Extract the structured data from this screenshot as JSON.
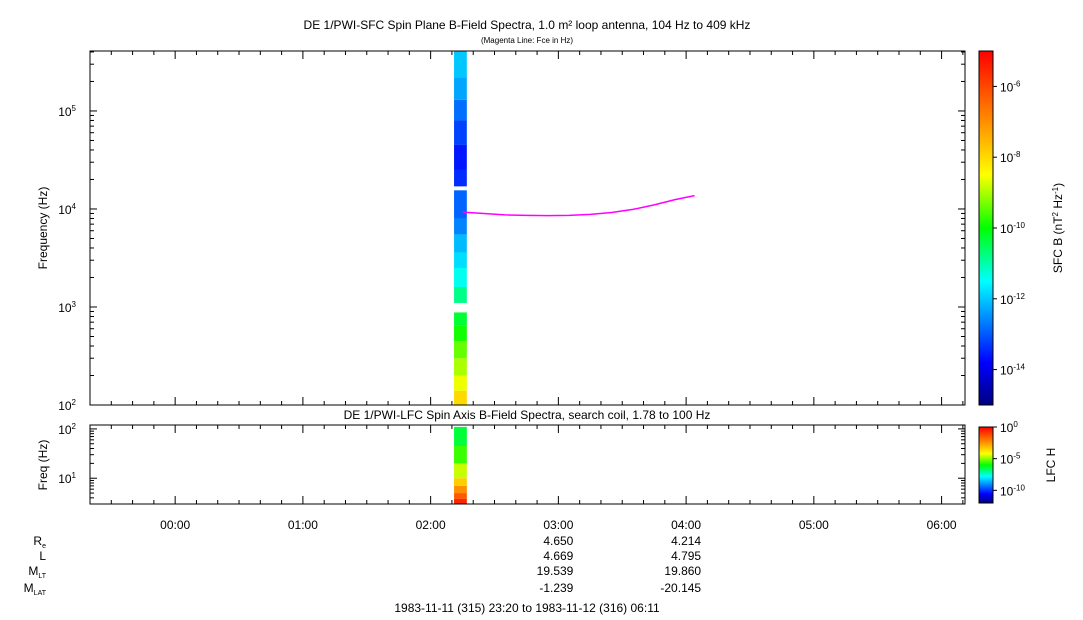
{
  "chart_data": [
    {
      "type": "heatmap",
      "title": "DE 1/PWI-SFC  Spin Plane B-Field Spectra, 1.0 m² loop antenna, 104 Hz to 409 kHz",
      "subtitle": "(Magenta Line: Fce in Hz)",
      "ylabel": "Frequency (Hz)",
      "yscale": "log",
      "ylim": [
        100,
        409000
      ],
      "x_time_range": [
        "23:20",
        "06:11"
      ],
      "y_ticks": [
        {
          "v": 100,
          "exp": "2"
        },
        {
          "v": 1000,
          "exp": "3"
        },
        {
          "v": 10000,
          "exp": "4"
        },
        {
          "v": 100000,
          "exp": "5"
        }
      ],
      "colorbar": {
        "label": "SFC B (nT",
        "label_sup1": "2",
        "label_mid": " Hz",
        "label_sup2": "-1",
        "label_end": ")",
        "scale": "log",
        "range": [
          1e-15,
          1e-05
        ],
        "ticks": [
          {
            "v": 1e-06,
            "exp": "-6"
          },
          {
            "v": 1e-08,
            "exp": "-8"
          },
          {
            "v": 1e-10,
            "exp": "-10"
          },
          {
            "v": 1e-12,
            "exp": "-12"
          },
          {
            "v": 1e-14,
            "exp": "-14"
          }
        ]
      },
      "data_column": {
        "time_start": "02:11",
        "time_end": "02:17",
        "cells": [
          {
            "f_lo": 100,
            "f_hi": 140,
            "v": -8.0
          },
          {
            "f_lo": 140,
            "f_hi": 200,
            "v": -8.6
          },
          {
            "f_lo": 200,
            "f_hi": 300,
            "v": -9.0
          },
          {
            "f_lo": 300,
            "f_hi": 450,
            "v": -9.4
          },
          {
            "f_lo": 450,
            "f_hi": 650,
            "v": -9.9
          },
          {
            "f_lo": 650,
            "f_hi": 880,
            "v": -10.3
          },
          {
            "f_lo": 1100,
            "f_hi": 1600,
            "v": -10.8
          },
          {
            "f_lo": 1600,
            "f_hi": 2500,
            "v": -11.4
          },
          {
            "f_lo": 2500,
            "f_hi": 3600,
            "v": -11.8
          },
          {
            "f_lo": 3600,
            "f_hi": 5500,
            "v": -12.1
          },
          {
            "f_lo": 5500,
            "f_hi": 8000,
            "v": -12.6
          },
          {
            "f_lo": 8000,
            "f_hi": 15500,
            "v": -12.9
          },
          {
            "f_lo": 17000,
            "f_hi": 25000,
            "v": -13.4
          },
          {
            "f_lo": 25000,
            "f_hi": 45000,
            "v": -13.6
          },
          {
            "f_lo": 45000,
            "f_hi": 80000,
            "v": -13.2
          },
          {
            "f_lo": 80000,
            "f_hi": 130000,
            "v": -12.8
          },
          {
            "f_lo": 130000,
            "f_hi": 220000,
            "v": -12.3
          },
          {
            "f_lo": 220000,
            "f_hi": 409000,
            "v": -12.0
          }
        ]
      },
      "series": [
        {
          "name": "Fce",
          "color": "#ff00ff",
          "points": [
            [
              "02:15",
              9300
            ],
            [
              "02:25",
              9000
            ],
            [
              "02:35",
              8700
            ],
            [
              "02:45",
              8600
            ],
            [
              "02:55",
              8550
            ],
            [
              "03:05",
              8600
            ],
            [
              "03:15",
              8800
            ],
            [
              "03:25",
              9200
            ],
            [
              "03:35",
              9900
            ],
            [
              "03:45",
              11000
            ],
            [
              "03:55",
              12500
            ],
            [
              "04:04",
              13700
            ]
          ]
        }
      ]
    },
    {
      "type": "heatmap",
      "title": "DE 1/PWI-LFC  Spin Axis B-Field Spectra, search coil, 1.78 to 100 Hz",
      "ylabel": "Freq (Hz)",
      "yscale": "log",
      "ylim": [
        3,
        120
      ],
      "y_ticks": [
        {
          "v": 10,
          "exp": "1"
        },
        {
          "v": 100,
          "exp": "2"
        }
      ],
      "colorbar": {
        "label": "LFC H",
        "scale": "log",
        "range": [
          1e-12,
          1
        ],
        "ticks": [
          {
            "v": 1,
            "exp": "0"
          },
          {
            "v": 1e-05,
            "exp": "-5"
          },
          {
            "v": 1e-10,
            "exp": "-10"
          }
        ]
      },
      "data_column": {
        "time_start": "02:11",
        "time_end": "02:17",
        "cells": [
          {
            "f_lo": 3,
            "f_hi": 3.8,
            "v": -0.6
          },
          {
            "f_lo": 3.8,
            "f_hi": 5,
            "v": -1.5
          },
          {
            "f_lo": 5,
            "f_hi": 7,
            "v": -2.4
          },
          {
            "f_lo": 7,
            "f_hi": 10,
            "v": -3.4
          },
          {
            "f_lo": 10,
            "f_hi": 20,
            "v": -4.6
          },
          {
            "f_lo": 20,
            "f_hi": 45,
            "v": -5.6
          },
          {
            "f_lo": 45,
            "f_hi": 110,
            "v": -6.4
          }
        ]
      }
    }
  ],
  "x_axis": {
    "tick_labels": [
      "00:00",
      "01:00",
      "02:00",
      "03:00",
      "04:00",
      "05:00",
      "06:00"
    ]
  },
  "ephemeris": {
    "rows": [
      {
        "label": "R",
        "sub": "e",
        "values": [
          "4.650",
          "4.214"
        ]
      },
      {
        "label": "L",
        "sub": "",
        "values": [
          "4.669",
          "4.795"
        ]
      },
      {
        "label": "M",
        "sub": "LT",
        "values": [
          "19.539",
          "19.860"
        ]
      },
      {
        "label": "M",
        "sub": "LAT",
        "values": [
          "-1.239",
          "-20.145"
        ]
      }
    ],
    "value_times": [
      "03:00",
      "04:00"
    ]
  },
  "footer": {
    "time_range": "1983-11-11 (315) 23:20 to 1983-11-12 (316) 06:11"
  }
}
